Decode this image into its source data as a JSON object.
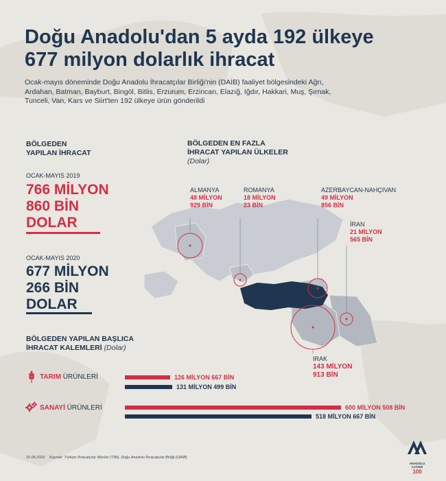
{
  "header": {
    "title_line1": "Doğu Anadolu'dan 5 ayda 192 ülkeye",
    "title_line2": "677 milyon dolarlık ihracat",
    "lead": "Ocak-mayıs döneminde Doğu Anadolu İhracatçılar Birliği'nin (DAİB) faaliyet bölgesindeki Ağrı, Ardahan, Batman, Bayburt, Bingöl, Bitlis, Erzurum, Erzincan, Elazığ, Iğdır, Hakkari, Muş, Şırnak, Tunceli, Van, Kars ve Siirt'ten 192 ülkeye ürün gönderildi"
  },
  "regional_exports": {
    "heading_line1": "BÖLGEDEN",
    "heading_line2": "YAPILAN İHRACAT",
    "period_2019": "OCAK-MAYIS 2019",
    "value_2019": [
      "766 MİLYON",
      "860 BİN",
      "DOLAR"
    ],
    "period_2020": "OCAK-MAYIS 2020",
    "value_2020": [
      "677 MİLYON",
      "266 BİN",
      "DOLAR"
    ]
  },
  "top_countries": {
    "heading_line1": "BÖLGEDEN EN FAZLA",
    "heading_line2": "İHRACAT YAPILAN ÜLKELER",
    "unit": "(Dolar)",
    "countries": [
      {
        "name": "ALMANYA",
        "value": [
          "48 MİLYON",
          "929 BİN"
        ]
      },
      {
        "name": "ROMANYA",
        "value": [
          "18 MİLYON",
          "23 BİN"
        ]
      },
      {
        "name": "AZERBAYCAN-NAHÇIVAN",
        "value": [
          "49 MİLYON",
          "856 BİN"
        ]
      },
      {
        "name": "İRAN",
        "value": [
          "21 MİLYON",
          "565 BİN"
        ]
      },
      {
        "name": "IRAK",
        "value": [
          "143 MİLYON",
          "913 BİN"
        ]
      }
    ]
  },
  "export_items": {
    "heading_line1": "BÖLGEDEN YAPILAN BAŞLICA",
    "heading_line2": "İHRACAT KALEMLERİ",
    "unit": "(Dolar)",
    "categories": [
      {
        "bold": "TARIM",
        "rest": " ÜRÜNLERİ",
        "icon": "wheat-icon",
        "value_2019": 126.667,
        "label_2019": "126 MİLYON 667 BİN",
        "value_2020": 131.499,
        "label_2020": "131 MİLYON 499 BİN"
      },
      {
        "bold": "SANAYİ",
        "rest": " ÜRÜNLERİ",
        "icon": "gears-icon",
        "value_2019": 600.508,
        "label_2019": "600 MİLYON 508 BİN",
        "value_2020": 518.667,
        "label_2020": "518 MİLYON 667 BİN"
      }
    ],
    "color_2019": "#d42e46",
    "color_2020": "#1f3650"
  },
  "footer": {
    "date": "15.06.2020",
    "source": "Kaynak: Türkiye İhracatçılar Meclisi (TİM), Doğu Anadolu İhracatçılar Birliği (DAİB)",
    "logo_text": "ANADOLU AJANSI"
  },
  "colors": {
    "red": "#d42e46",
    "navy": "#1f3650",
    "map_gray": "#b9bec6",
    "turkey": "#1f3650"
  }
}
